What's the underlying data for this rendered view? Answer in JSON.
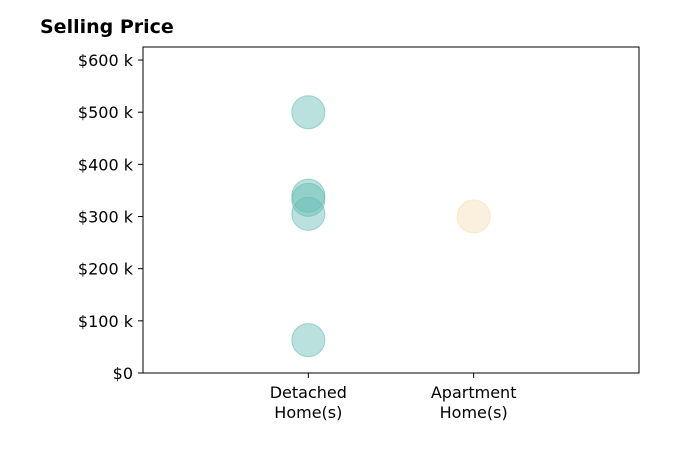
{
  "chart_data": {
    "type": "scatter",
    "title": "Selling Price",
    "xlabel": "",
    "ylabel": "",
    "categories": [
      "Detached\nHome(s)",
      "Apartment\nHome(s)"
    ],
    "xlim": [
      -1,
      2
    ],
    "ylim": [
      0,
      625000
    ],
    "yticks": [
      0,
      100000,
      200000,
      300000,
      400000,
      500000,
      600000
    ],
    "ytick_labels": [
      "$0",
      "$100 k",
      "$200 k",
      "$300 k",
      "$400 k",
      "$500 k",
      "$600 k"
    ],
    "grid": false,
    "series": [
      {
        "category": "Detached\nHome(s)",
        "color": "#66bdb3",
        "values": [
          500000,
          340000,
          332000,
          305000,
          63000
        ]
      },
      {
        "category": "Apartment\nHome(s)",
        "color": "#f5deb3",
        "values": [
          300000
        ]
      }
    ]
  }
}
